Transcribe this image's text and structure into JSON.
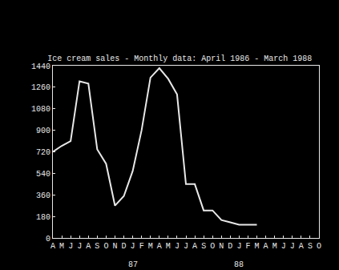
{
  "chart_data": {
    "type": "line",
    "title": "Ice cream sales - Monthly data: April 1986 - March 1988",
    "categories": [
      "A",
      "M",
      "J",
      "J",
      "A",
      "S",
      "O",
      "N",
      "D",
      "J",
      "F",
      "M",
      "A",
      "M",
      "J",
      "J",
      "A",
      "S",
      "O",
      "N",
      "D",
      "J",
      "F",
      "M",
      "A",
      "M",
      "J",
      "J",
      "A",
      "S",
      "O"
    ],
    "values": [
      720,
      770,
      810,
      1310,
      1290,
      740,
      620,
      270,
      350,
      560,
      900,
      1340,
      1420,
      1330,
      1200,
      450,
      450,
      230,
      230,
      150,
      130,
      110,
      110,
      110,
      null,
      null,
      null,
      null,
      null,
      null,
      null
    ],
    "color": "#e8e8e8",
    "ylim": [
      0,
      1440
    ],
    "yticks": [
      0,
      180,
      360,
      540,
      720,
      900,
      1080,
      1260,
      1440
    ],
    "annotations": [
      {
        "x": 9,
        "text": "87"
      },
      {
        "x": 21,
        "text": "88"
      }
    ],
    "grid": false
  }
}
